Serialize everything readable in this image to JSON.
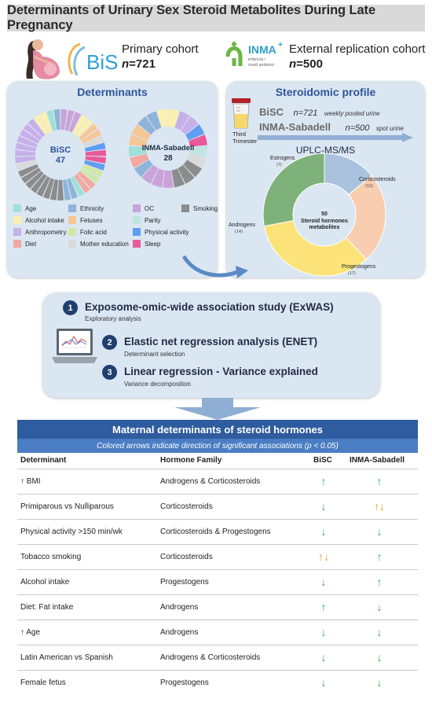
{
  "title": "Determinants of Urinary Sex Steroid Metabolites During Late Pregnancy",
  "cohorts": {
    "primary": {
      "logo": "BiSC",
      "label": "Primary cohort",
      "n_prefix": "n",
      "n_value": "=721"
    },
    "external": {
      "logo": "INMA",
      "logo_plus": "+",
      "logo_sub1": "infància i",
      "logo_sub2": "medi ambient",
      "label": "External replication cohort",
      "n_prefix": "n",
      "n_value": "=500"
    }
  },
  "determinants_panel": {
    "title": "Determinants",
    "bisc_label": "BiSC",
    "bisc_count": "47",
    "inma_label": "INMA-Sabadell",
    "inma_count": "28",
    "legend": [
      {
        "label": "Age",
        "color": "#9fe0d7"
      },
      {
        "label": "Ethnicity",
        "color": "#8fb4d9"
      },
      {
        "label": "OC",
        "color": "#c9a3d9"
      },
      {
        "label": "Smoking",
        "color": "#8c8c8c"
      },
      {
        "label": "Alcohol intake",
        "color": "#fbf0b0"
      },
      {
        "label": "Fetuses",
        "color": "#f6c796"
      },
      {
        "label": "Parity",
        "color": "#bfe6e0"
      },
      {
        "label": "Anthropometry",
        "color": "#c7b0ea"
      },
      {
        "label": "Folic acid",
        "color": "#cfe8a6"
      },
      {
        "label": "Physical activity",
        "color": "#5f9ef0"
      },
      {
        "label": "Diet",
        "color": "#f2a8a0"
      },
      {
        "label": "Mother education",
        "color": "#dadada"
      },
      {
        "label": "Sleep",
        "color": "#e85a9a"
      }
    ]
  },
  "steroidomic_panel": {
    "title": "Steroidomic profile",
    "trimester_label_1": "Third",
    "trimester_label_2": "Trimester",
    "bisc": {
      "name": "BiSC",
      "n": "n=721",
      "sample": "weekly pooled urine"
    },
    "inma": {
      "name": "INMA-Sabadell",
      "n": "n=500",
      "sample": "spot urine"
    },
    "method": "UPLC-MS/MS",
    "center_count": "50",
    "center_line1": "Steroid hormones",
    "center_line2": "metabolites"
  },
  "chart_data": {
    "type": "pie",
    "title": "",
    "categories": [
      "Estrogens",
      "Corticosteroids",
      "Progestogens",
      "Androgens"
    ],
    "values": [
      7,
      12,
      17,
      14
    ],
    "count_labels": [
      "(7)",
      "(12)",
      "(17)",
      "(14)"
    ],
    "colors": [
      "#a9c2dd",
      "#f8cdb0",
      "#fbe37a",
      "#7fb27a"
    ]
  },
  "analysis_steps": [
    {
      "num": "1",
      "title": "Exposome-omic-wide association study (ExWAS)",
      "subtitle": "Exploratory analysis"
    },
    {
      "num": "2",
      "title": "Elastic net regression analysis (ENET)",
      "subtitle": "Determinant selection"
    },
    {
      "num": "3",
      "title": "Linear regression - Variance explained",
      "subtitle": "Variance decomposition"
    }
  ],
  "table": {
    "title": "Maternal determinants of steroid hormones",
    "subtitle": "Colored arrows indicate direction of significant associations (p < 0.05)",
    "columns": [
      "Determinant",
      "Hormone Family",
      "BiSC",
      "INMA-Sabadell"
    ],
    "rows": [
      {
        "determinant": "↑ BMI",
        "family": "Androgens & Corticosteroids",
        "bisc": "↑",
        "bisc_color": "#2aa39a",
        "inma": "↑",
        "inma_color": "#2aa39a"
      },
      {
        "determinant": "Primiparous vs Nulliparous",
        "family": "Corticosteroids",
        "bisc": "↓",
        "bisc_color": "#3ea84a",
        "inma": "↑↓",
        "inma_color": "#f0a020"
      },
      {
        "determinant": "Physical activity >150 min/wk",
        "family": "Corticosteroids & Progestogens",
        "bisc": "↓",
        "bisc_color": "#3ea84a",
        "inma": "↓",
        "inma_color": "#3ea84a"
      },
      {
        "determinant": "Tobacco smoking",
        "family": "Corticosteroids",
        "bisc": "↑↓",
        "bisc_color": "#f0a020",
        "inma": "↑",
        "inma_color": "#2aa39a"
      },
      {
        "determinant": "Alcohol intake",
        "family": "Progestogens",
        "bisc": "↓",
        "bisc_color": "#3ea84a",
        "inma": "↑",
        "inma_color": "#2aa39a"
      },
      {
        "determinant": "Diet: Fat intake",
        "family": "Androgens",
        "bisc": "↑",
        "bisc_color": "#2aa39a",
        "inma": "↓",
        "inma_color": "#3ea84a"
      },
      {
        "determinant": "↑ Age",
        "family": "Androgens",
        "bisc": "↓",
        "bisc_color": "#3ea84a",
        "inma": "↓",
        "inma_color": "#3ea84a"
      },
      {
        "determinant": "Latin American vs Spanish",
        "family": "Androgens & Corticosteroids",
        "bisc": "↓",
        "bisc_color": "#3ea84a",
        "inma": "↓",
        "inma_color": "#3ea84a"
      },
      {
        "determinant": "Female fetus",
        "family": "Progestogens",
        "bisc": "↓",
        "bisc_color": "#3ea84a",
        "inma": "↓",
        "inma_color": "#3ea84a"
      }
    ]
  }
}
